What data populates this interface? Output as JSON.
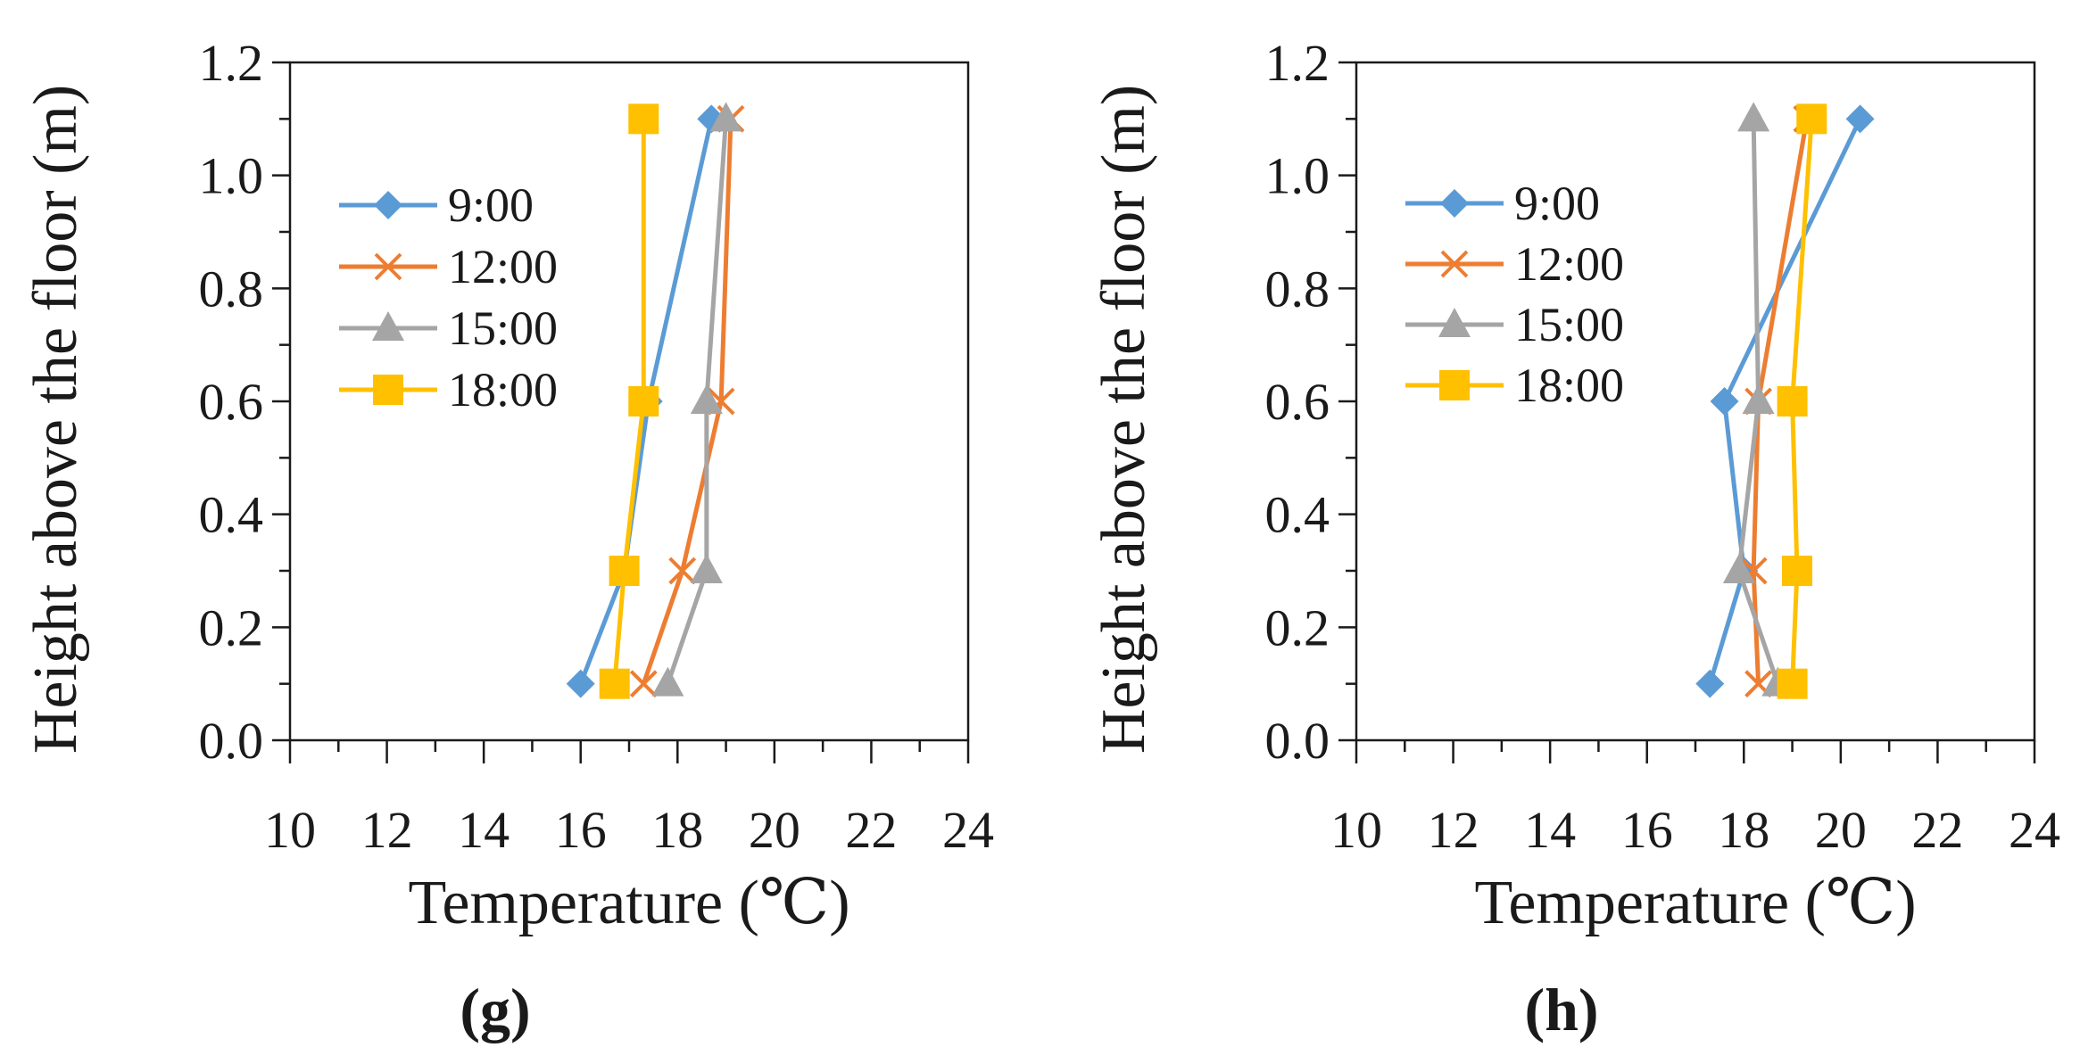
{
  "chart_data": [
    {
      "type": "line",
      "panel_label": "(g)",
      "xlabel": "Temperature (℃)",
      "ylabel": "Height above the floor (m)",
      "xlim": [
        10,
        24
      ],
      "ylim": [
        0.0,
        1.2
      ],
      "xticks": [
        "10",
        "12",
        "14",
        "16",
        "18",
        "20",
        "22",
        "24"
      ],
      "yticks": [
        "0.0",
        "0.2",
        "0.4",
        "0.6",
        "0.8",
        "1.0",
        "1.2"
      ],
      "legend": "upper-left",
      "series": [
        {
          "name": "9:00",
          "color": "#5b9bd5",
          "marker": "diamond",
          "points": [
            [
              16.0,
              0.1
            ],
            [
              16.9,
              0.3
            ],
            [
              17.4,
              0.6
            ],
            [
              18.7,
              1.1
            ]
          ]
        },
        {
          "name": "12:00",
          "color": "#ed7d31",
          "marker": "x",
          "points": [
            [
              17.3,
              0.1
            ],
            [
              18.1,
              0.3
            ],
            [
              18.9,
              0.6
            ],
            [
              19.1,
              1.1
            ]
          ]
        },
        {
          "name": "15:00",
          "color": "#a5a5a5",
          "marker": "triangle",
          "points": [
            [
              17.8,
              0.1
            ],
            [
              18.6,
              0.3
            ],
            [
              18.6,
              0.6
            ],
            [
              19.0,
              1.1
            ]
          ]
        },
        {
          "name": "18:00",
          "color": "#ffc000",
          "marker": "square",
          "points": [
            [
              16.7,
              0.1
            ],
            [
              16.9,
              0.3
            ],
            [
              17.3,
              0.6
            ],
            [
              17.3,
              1.1
            ]
          ]
        }
      ]
    },
    {
      "type": "line",
      "panel_label": "(h)",
      "xlabel": "Temperature (℃)",
      "ylabel": "Height above the floor (m)",
      "xlim": [
        10,
        24
      ],
      "ylim": [
        0.0,
        1.2
      ],
      "xticks": [
        "10",
        "12",
        "14",
        "16",
        "18",
        "20",
        "22",
        "24"
      ],
      "yticks": [
        "0.0",
        "0.2",
        "0.4",
        "0.6",
        "0.8",
        "1.0",
        "1.2"
      ],
      "legend": "upper-left",
      "series": [
        {
          "name": "9:00",
          "color": "#5b9bd5",
          "marker": "diamond",
          "points": [
            [
              17.3,
              0.1
            ],
            [
              18.0,
              0.3
            ],
            [
              17.6,
              0.6
            ],
            [
              20.4,
              1.1
            ]
          ]
        },
        {
          "name": "12:00",
          "color": "#ed7d31",
          "marker": "x",
          "points": [
            [
              18.3,
              0.1
            ],
            [
              18.2,
              0.3
            ],
            [
              18.3,
              0.6
            ],
            [
              19.3,
              1.1
            ]
          ]
        },
        {
          "name": "15:00",
          "color": "#a5a5a5",
          "marker": "triangle",
          "points": [
            [
              18.7,
              0.1
            ],
            [
              17.9,
              0.3
            ],
            [
              18.3,
              0.6
            ],
            [
              18.2,
              1.1
            ]
          ]
        },
        {
          "name": "18:00",
          "color": "#ffc000",
          "marker": "square",
          "points": [
            [
              19.0,
              0.1
            ],
            [
              19.1,
              0.3
            ],
            [
              19.0,
              0.6
            ],
            [
              19.4,
              1.1
            ]
          ]
        }
      ]
    }
  ]
}
